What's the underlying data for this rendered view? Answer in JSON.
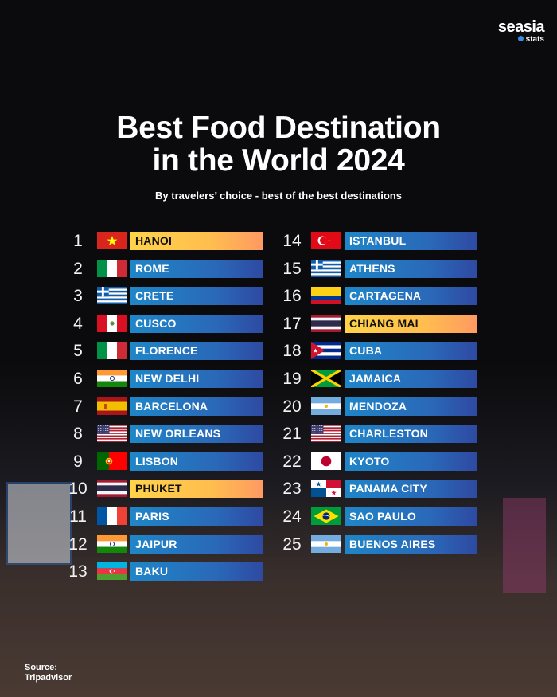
{
  "brand": {
    "name": "seasia",
    "sub": "stats"
  },
  "title_line1": "Best Food Destination",
  "title_line2": "in the World 2024",
  "subtitle": "By travelers’ choice - best of the best destinations",
  "source_label": "Source:",
  "source_name": "Tripadvisor",
  "colors": {
    "bar_blue": "#2a68b8",
    "bar_gold": "#ffc24e",
    "background": "#0b0b0d"
  },
  "destinations": [
    {
      "rank": "1",
      "name": "HANOI",
      "flag": "vietnam",
      "highlight": true
    },
    {
      "rank": "2",
      "name": "ROME",
      "flag": "italy",
      "highlight": false
    },
    {
      "rank": "3",
      "name": "CRETE",
      "flag": "greece",
      "highlight": false
    },
    {
      "rank": "4",
      "name": "CUSCO",
      "flag": "peru",
      "highlight": false
    },
    {
      "rank": "5",
      "name": "FLORENCE",
      "flag": "italy",
      "highlight": false
    },
    {
      "rank": "6",
      "name": "NEW DELHI",
      "flag": "india",
      "highlight": false
    },
    {
      "rank": "7",
      "name": "BARCELONA",
      "flag": "spain",
      "highlight": false
    },
    {
      "rank": "8",
      "name": "NEW ORLEANS",
      "flag": "usa",
      "highlight": false
    },
    {
      "rank": "9",
      "name": "LISBON",
      "flag": "portugal",
      "highlight": false
    },
    {
      "rank": "10",
      "name": "PHUKET",
      "flag": "thailand",
      "highlight": true
    },
    {
      "rank": "11",
      "name": "PARIS",
      "flag": "france",
      "highlight": false
    },
    {
      "rank": "12",
      "name": "JAIPUR",
      "flag": "india",
      "highlight": false
    },
    {
      "rank": "13",
      "name": "BAKU",
      "flag": "azerbaijan",
      "highlight": false
    },
    {
      "rank": "14",
      "name": "ISTANBUL",
      "flag": "turkey",
      "highlight": false
    },
    {
      "rank": "15",
      "name": "ATHENS",
      "flag": "greece",
      "highlight": false
    },
    {
      "rank": "16",
      "name": "CARTAGENA",
      "flag": "colombia",
      "highlight": false
    },
    {
      "rank": "17",
      "name": "CHIANG MAI",
      "flag": "thailand",
      "highlight": true
    },
    {
      "rank": "18",
      "name": "CUBA",
      "flag": "cuba",
      "highlight": false
    },
    {
      "rank": "19",
      "name": "JAMAICA",
      "flag": "jamaica",
      "highlight": false
    },
    {
      "rank": "20",
      "name": "MENDOZA",
      "flag": "argentina",
      "highlight": false
    },
    {
      "rank": "21",
      "name": "CHARLESTON",
      "flag": "usa",
      "highlight": false
    },
    {
      "rank": "22",
      "name": "KYOTO",
      "flag": "japan",
      "highlight": false
    },
    {
      "rank": "23",
      "name": "PANAMA CITY",
      "flag": "panama",
      "highlight": false
    },
    {
      "rank": "24",
      "name": "SAO PAULO",
      "flag": "brazil",
      "highlight": false
    },
    {
      "rank": "25",
      "name": "BUENOS AIRES",
      "flag": "argentina",
      "highlight": false
    }
  ]
}
